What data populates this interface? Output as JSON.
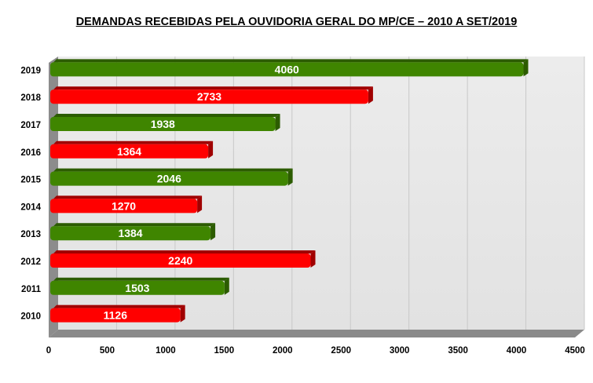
{
  "chart_data": {
    "type": "bar",
    "orientation": "horizontal",
    "title": "DEMANDAS RECEBIDAS PELA OUVIDORIA GERAL DO MP/CE – 2010 A SET/2019",
    "categories": [
      "2019",
      "2018",
      "2017",
      "2016",
      "2015",
      "2014",
      "2013",
      "2012",
      "2011",
      "2010"
    ],
    "values": [
      4060,
      2733,
      1938,
      1364,
      2046,
      1270,
      1384,
      2240,
      1503,
      1126
    ],
    "bar_colors": [
      "#3f8500",
      "#ff0000",
      "#3f8500",
      "#ff0000",
      "#3f8500",
      "#ff0000",
      "#3f8500",
      "#ff0000",
      "#3f8500",
      "#ff0000"
    ],
    "xlim": [
      0,
      4500
    ],
    "xticks": [
      0,
      500,
      1000,
      1500,
      2000,
      2500,
      3000,
      3500,
      4000,
      4500
    ],
    "grid": true,
    "legend": "none",
    "xlabel": "",
    "ylabel": ""
  }
}
